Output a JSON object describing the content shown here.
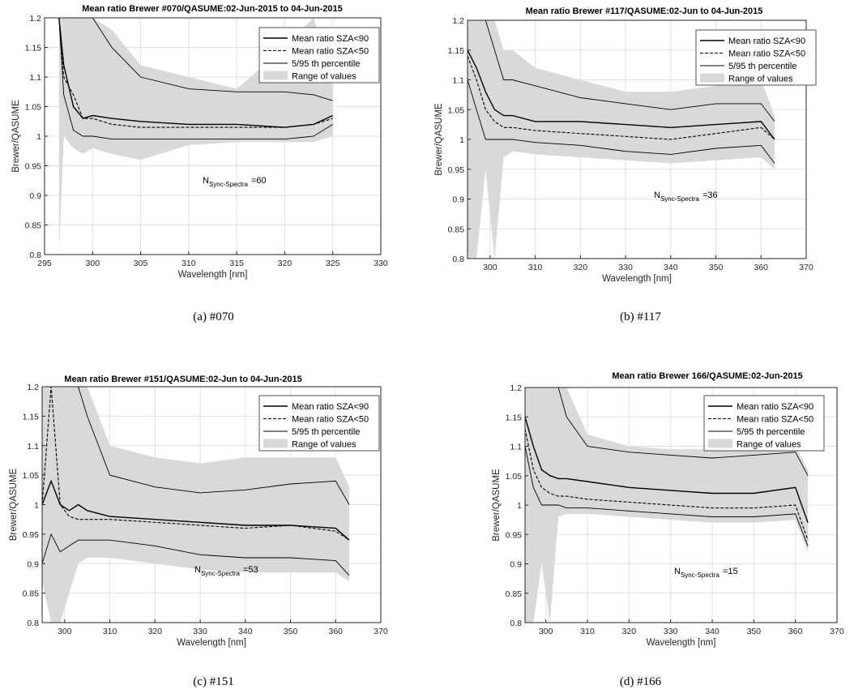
{
  "figures": [
    {
      "id": "a",
      "caption": "(a) #070",
      "chart_data": {
        "type": "line",
        "title": "Mean ratio Brewer #070/QASUME:02-Jun-2015 to 04-Jun-2015",
        "xlabel": "Wavelength [nm]",
        "ylabel": "Brewer/QASUME",
        "xlim": [
          295,
          330
        ],
        "ylim": [
          0.8,
          1.2
        ],
        "xticks": [
          295,
          300,
          305,
          310,
          315,
          320,
          325,
          330
        ],
        "yticks": [
          0.8,
          0.85,
          0.9,
          0.95,
          1,
          1.05,
          1.1,
          1.15,
          1.2
        ],
        "grid": true,
        "legend_position": "top-right",
        "legend": [
          "Mean ratio SZA<90",
          "Mean ratio SZA<50",
          "5/95 th percentile",
          "Range of values"
        ],
        "annotation": {
          "n_label": "N",
          "n_sub": "Sync-Spectra",
          "n_value": "=60"
        },
        "x": [
          296.5,
          297,
          298,
          299,
          300,
          302,
          305,
          310,
          315,
          320,
          323,
          325
        ],
        "series": [
          {
            "name": "Mean ratio SZA<90",
            "style": "solid-thick",
            "y": [
              1.2,
              1.12,
              1.05,
              1.03,
              1.035,
              1.03,
              1.025,
              1.02,
              1.02,
              1.015,
              1.02,
              1.035
            ]
          },
          {
            "name": "Mean ratio SZA<50",
            "style": "dashed",
            "y": [
              1.2,
              1.1,
              1.07,
              1.03,
              1.03,
              1.02,
              1.015,
              1.015,
              1.015,
              1.015,
              1.02,
              1.03
            ]
          },
          {
            "name": "5/95 th percentile",
            "style": "solid-thin",
            "y": [
              1.2,
              1.07,
              1.01,
              1.0,
              1.0,
              0.995,
              0.995,
              0.995,
              0.995,
              0.995,
              1.0,
              1.02
            ]
          },
          {
            "name": "5/95 th percentile upper",
            "style": "solid-thin",
            "y": [
              1.2,
              1.2,
              1.2,
              1.2,
              1.2,
              1.15,
              1.1,
              1.08,
              1.075,
              1.075,
              1.07,
              1.06
            ]
          }
        ],
        "range": {
          "upper": [
            1.2,
            1.2,
            1.2,
            1.2,
            1.2,
            1.18,
            1.12,
            1.1,
            1.08,
            1.15,
            1.2,
            1.1
          ],
          "lower": [
            0.8,
            1.0,
            0.98,
            0.97,
            0.98,
            0.97,
            0.96,
            0.985,
            0.99,
            0.99,
            0.99,
            1.0
          ]
        }
      }
    },
    {
      "id": "b",
      "caption": "(b) #117",
      "chart_data": {
        "type": "line",
        "title": "Mean ratio Brewer #117/QASUME:02-Jun to 04-Jun-2015",
        "xlabel": "Wavelength [nm]",
        "ylabel": "Brewer/QASUME",
        "xlim": [
          295,
          370
        ],
        "ylim": [
          0.8,
          1.2
        ],
        "xticks": [
          300,
          310,
          320,
          330,
          340,
          350,
          360,
          370
        ],
        "yticks": [
          0.8,
          0.85,
          0.9,
          0.95,
          1,
          1.05,
          1.1,
          1.15,
          1.2
        ],
        "grid": true,
        "legend_position": "top-right",
        "legend": [
          "Mean ratio SZA<90",
          "Mean ratio SZA<50",
          "5/95 th percentile",
          "Range of values"
        ],
        "annotation": {
          "n_label": "N",
          "n_sub": "Sync-Spectra",
          "n_value": "=36"
        },
        "x": [
          295,
          297,
          299,
          301,
          303,
          305,
          310,
          320,
          330,
          340,
          350,
          360,
          363
        ],
        "series": [
          {
            "name": "Mean ratio SZA<90",
            "style": "solid-thick",
            "y": [
              1.15,
              1.12,
              1.08,
              1.05,
              1.04,
              1.04,
              1.03,
              1.03,
              1.025,
              1.02,
              1.025,
              1.03,
              1.0
            ]
          },
          {
            "name": "Mean ratio SZA<50",
            "style": "dashed",
            "y": [
              1.14,
              1.1,
              1.05,
              1.03,
              1.02,
              1.02,
              1.015,
              1.01,
              1.005,
              1.0,
              1.01,
              1.02,
              1.0
            ]
          },
          {
            "name": "5/95 th percentile",
            "style": "solid-thin",
            "y": [
              1.1,
              1.05,
              1.0,
              1.0,
              1.0,
              1.0,
              0.995,
              0.99,
              0.98,
              0.975,
              0.985,
              0.99,
              0.96
            ]
          },
          {
            "name": "5/95 th percentile upper",
            "style": "solid-thin",
            "y": [
              1.2,
              1.2,
              1.2,
              1.15,
              1.1,
              1.1,
              1.09,
              1.07,
              1.06,
              1.05,
              1.06,
              1.06,
              1.03
            ]
          }
        ],
        "range": {
          "upper": [
            1.2,
            1.2,
            1.2,
            1.2,
            1.15,
            1.15,
            1.12,
            1.1,
            1.08,
            1.08,
            1.09,
            1.1,
            1.04
          ]
        },
        "range_lower": [
          0.8,
          0.8,
          0.95,
          0.8,
          0.97,
          0.98,
          0.975,
          0.97,
          0.965,
          0.96,
          0.965,
          0.97,
          0.95
        ]
      }
    },
    {
      "id": "c",
      "caption": "(c) #151",
      "chart_data": {
        "type": "line",
        "title": "Mean ratio Brewer #151/QASUME:02-Jun to 04-Jun-2015",
        "xlabel": "Wavelength [nm]",
        "ylabel": "Brewer/QASUME",
        "xlim": [
          295,
          370
        ],
        "ylim": [
          0.8,
          1.2
        ],
        "xticks": [
          300,
          310,
          320,
          330,
          340,
          350,
          360,
          370
        ],
        "yticks": [
          0.8,
          0.85,
          0.9,
          0.95,
          1,
          1.05,
          1.1,
          1.15,
          1.2
        ],
        "grid": true,
        "legend_position": "top-right",
        "legend": [
          "Mean ratio SZA<90",
          "Mean ratio SZA<50",
          "5/95 th percentile",
          "Range of values"
        ],
        "annotation": {
          "n_label": "N",
          "n_sub": "Sync-Spectra",
          "n_value": "=53"
        },
        "x": [
          295,
          297,
          299,
          301,
          303,
          305,
          310,
          320,
          330,
          340,
          350,
          360,
          363
        ],
        "series": [
          {
            "name": "Mean ratio SZA<90",
            "style": "solid-thick",
            "y": [
              1.0,
              1.04,
              1.0,
              0.99,
              1.0,
              0.99,
              0.98,
              0.975,
              0.97,
              0.965,
              0.965,
              0.96,
              0.94
            ]
          },
          {
            "name": "Mean ratio SZA<50",
            "style": "dashed",
            "y": [
              1.0,
              1.2,
              1.0,
              0.98,
              0.975,
              0.975,
              0.975,
              0.97,
              0.965,
              0.96,
              0.965,
              0.955,
              0.94
            ]
          },
          {
            "name": "5/95 th percentile",
            "style": "solid-thin",
            "y": [
              0.9,
              0.95,
              0.92,
              0.93,
              0.94,
              0.94,
              0.94,
              0.93,
              0.915,
              0.91,
              0.91,
              0.905,
              0.88
            ]
          },
          {
            "name": "5/95 th percentile upper",
            "style": "solid-thin",
            "y": [
              1.2,
              1.2,
              1.2,
              1.2,
              1.2,
              1.15,
              1.05,
              1.03,
              1.02,
              1.025,
              1.035,
              1.04,
              1.0
            ]
          }
        ],
        "range": {
          "upper": [
            1.2,
            1.2,
            1.2,
            1.2,
            1.2,
            1.2,
            1.1,
            1.08,
            1.07,
            1.08,
            1.08,
            1.08,
            1.03
          ]
        },
        "range_lower": [
          0.87,
          0.8,
          0.8,
          0.85,
          0.9,
          0.91,
          0.91,
          0.9,
          0.89,
          0.885,
          0.885,
          0.885,
          0.87
        ]
      }
    },
    {
      "id": "d",
      "caption": "(d) #166",
      "chart_data": {
        "type": "line",
        "title": "Mean ratio Brewer 166/QASUME:02-Jun-2015",
        "xlabel": "Wavelength [nm]",
        "ylabel": "Brewer/QASUME",
        "xlim": [
          295,
          370
        ],
        "ylim": [
          0.8,
          1.2
        ],
        "xticks": [
          300,
          310,
          320,
          330,
          340,
          350,
          360,
          370
        ],
        "yticks": [
          0.8,
          0.85,
          0.9,
          0.95,
          1,
          1.05,
          1.1,
          1.15,
          1.2
        ],
        "grid": true,
        "legend_position": "top-right",
        "legend": [
          "Mean ratio SZA<90",
          "Mean ratio SZA<50",
          "5/95 th percentile",
          "Range of values"
        ],
        "annotation": {
          "n_label": "N",
          "n_sub": "Sync-Spectra",
          "n_value": "=15"
        },
        "x": [
          295,
          297,
          299,
          301,
          303,
          305,
          310,
          320,
          330,
          340,
          350,
          360,
          363
        ],
        "series": [
          {
            "name": "Mean ratio SZA<90",
            "style": "solid-thick",
            "y": [
              1.15,
              1.1,
              1.06,
              1.05,
              1.045,
              1.045,
              1.04,
              1.03,
              1.025,
              1.02,
              1.02,
              1.03,
              0.97
            ]
          },
          {
            "name": "Mean ratio SZA<50",
            "style": "dashed",
            "y": [
              1.13,
              1.06,
              1.03,
              1.02,
              1.015,
              1.015,
              1.01,
              1.005,
              1.0,
              0.995,
              0.995,
              1.0,
              0.94
            ]
          },
          {
            "name": "5/95 th percentile",
            "style": "solid-thin",
            "y": [
              1.1,
              1.03,
              1.0,
              1.0,
              1.0,
              0.995,
              0.995,
              0.99,
              0.985,
              0.98,
              0.98,
              0.985,
              0.93
            ]
          },
          {
            "name": "5/95 th percentile upper",
            "style": "solid-thin",
            "y": [
              1.2,
              1.2,
              1.2,
              1.2,
              1.2,
              1.15,
              1.1,
              1.09,
              1.085,
              1.08,
              1.085,
              1.09,
              1.05
            ]
          }
        ],
        "range": {
          "upper": [
            1.2,
            1.2,
            1.2,
            1.2,
            1.2,
            1.2,
            1.12,
            1.1,
            1.095,
            1.095,
            1.1,
            1.1,
            1.06
          ]
        },
        "range_lower": [
          0.8,
          0.8,
          0.9,
          0.8,
          0.98,
          0.985,
          0.985,
          0.98,
          0.975,
          0.97,
          0.97,
          0.975,
          0.92
        ]
      }
    }
  ]
}
